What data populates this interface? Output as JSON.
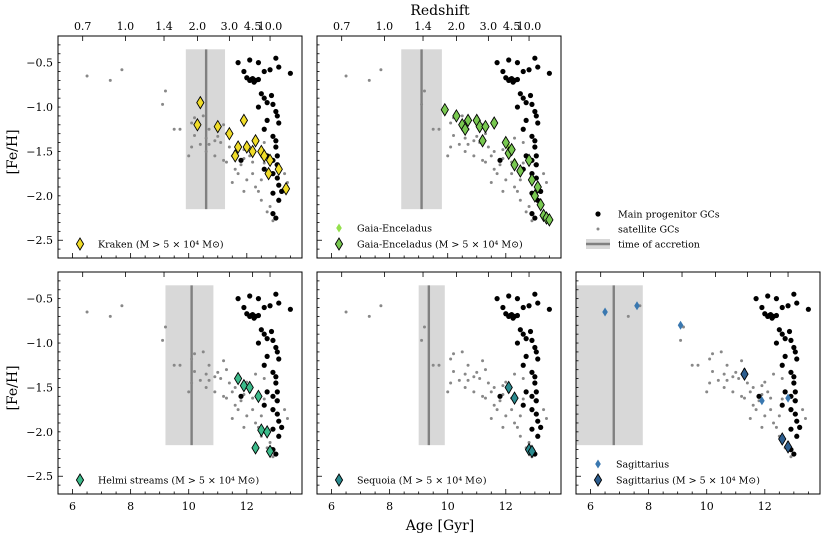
{
  "labels": {
    "xlabel": "Age [Gyr]",
    "ylabel": "[Fe/H]",
    "top_xlabel": "Redshift"
  },
  "colors": {
    "main": "#000000",
    "satellite": "#888888",
    "accretion_line": "#808080",
    "accretion_band": "#d8d8d8",
    "kraken": "#f0dc28",
    "gaia_light": "#94e04c",
    "gaia": "#78c850",
    "helmi": "#3cba8a",
    "sequoia": "#2a8a8e",
    "sagittarius_light": "#3a78b0",
    "sagittarius": "#2c5d8e"
  },
  "chart_data": {
    "type": "scatter",
    "xlim": [
      5.5,
      13.9
    ],
    "ylim": [
      -2.7,
      -0.2
    ],
    "x_ticks": [
      6,
      8,
      10,
      12
    ],
    "y_ticks": [
      -0.5,
      -1.0,
      -1.5,
      -2.0,
      -2.5
    ],
    "y_tick_labels": [
      "−0.5",
      "−1.0",
      "−1.5",
      "−2.0",
      "−2.5"
    ],
    "redshift_ticks": [
      {
        "label": "0.7",
        "age": 6.35
      },
      {
        "label": "1.0",
        "age": 7.82
      },
      {
        "label": "1.4",
        "age": 9.15
      },
      {
        "label": "2.0",
        "age": 10.3
      },
      {
        "label": "3.0",
        "age": 11.4
      },
      {
        "label": "4.5",
        "age": 12.2
      },
      {
        "label": "10.0",
        "age": 12.8
      }
    ],
    "main_gcs": [
      [
        11.7,
        -0.5
      ],
      [
        11.9,
        -0.6
      ],
      [
        12.1,
        -0.47
      ],
      [
        12.4,
        -0.5
      ],
      [
        12.6,
        -0.6
      ],
      [
        12.8,
        -0.58
      ],
      [
        13.0,
        -0.45
      ],
      [
        13.1,
        -0.55
      ],
      [
        13.5,
        -0.62
      ],
      [
        12.0,
        -0.67
      ],
      [
        12.1,
        -0.7
      ],
      [
        12.15,
        -0.69
      ],
      [
        12.2,
        -0.68
      ],
      [
        12.3,
        -0.7
      ],
      [
        12.25,
        -0.72
      ],
      [
        12.4,
        -0.69
      ],
      [
        12.5,
        -0.85
      ],
      [
        12.6,
        -0.9
      ],
      [
        12.7,
        -0.95
      ],
      [
        12.85,
        -0.87
      ],
      [
        12.9,
        -0.97
      ],
      [
        13.0,
        -1.05
      ],
      [
        13.05,
        -1.1
      ],
      [
        12.4,
        -1.0
      ],
      [
        12.7,
        -1.15
      ],
      [
        13.1,
        -1.18
      ],
      [
        12.6,
        -1.25
      ],
      [
        12.9,
        -1.33
      ],
      [
        13.0,
        -1.38
      ],
      [
        13.0,
        -1.45
      ],
      [
        11.8,
        -1.6
      ],
      [
        12.7,
        -1.55
      ],
      [
        12.9,
        -1.6
      ],
      [
        13.05,
        -1.55
      ],
      [
        13.05,
        -1.65
      ],
      [
        12.6,
        -1.7
      ],
      [
        12.9,
        -1.75
      ],
      [
        13.05,
        -1.8
      ],
      [
        13.1,
        -1.88
      ],
      [
        13.2,
        -1.95
      ],
      [
        12.9,
        -1.97
      ],
      [
        13.1,
        -2.05
      ],
      [
        12.9,
        -2.2
      ],
      [
        13.0,
        -2.25
      ]
    ],
    "satellite_gcs": [
      [
        6.5,
        -0.65
      ],
      [
        7.3,
        -0.7
      ],
      [
        7.7,
        -0.58
      ],
      [
        9.2,
        -0.82
      ],
      [
        9.1,
        -0.97
      ],
      [
        9.5,
        -1.25
      ],
      [
        10.2,
        -1.12
      ],
      [
        10.1,
        -1.18
      ],
      [
        10.5,
        -1.1
      ],
      [
        10.2,
        -1.32
      ],
      [
        10.6,
        -1.35
      ],
      [
        10.7,
        -1.25
      ],
      [
        10.9,
        -1.38
      ],
      [
        10.6,
        -1.5
      ],
      [
        10.7,
        -1.42
      ],
      [
        11.2,
        -1.2
      ],
      [
        11.4,
        -1.45
      ],
      [
        11.5,
        -1.55
      ],
      [
        11.3,
        -1.62
      ],
      [
        11.6,
        -1.7
      ],
      [
        11.8,
        -1.65
      ],
      [
        11.7,
        -1.75
      ],
      [
        11.9,
        -1.58
      ],
      [
        12.0,
        -1.82
      ],
      [
        12.2,
        -1.75
      ],
      [
        12.3,
        -1.9
      ],
      [
        12.4,
        -1.95
      ],
      [
        12.5,
        -2.05
      ],
      [
        12.7,
        -2.18
      ],
      [
        12.8,
        -2.12
      ],
      [
        12.9,
        -2.28
      ],
      [
        12.6,
        -1.4
      ],
      [
        12.3,
        -1.35
      ],
      [
        11.9,
        -1.48
      ],
      [
        11.6,
        -1.5
      ],
      [
        10.4,
        -1.42
      ],
      [
        11.1,
        -1.4
      ],
      [
        11.3,
        -1.3
      ],
      [
        10.9,
        -1.55
      ],
      [
        12.1,
        -1.55
      ],
      [
        12.2,
        -1.62
      ],
      [
        12.0,
        -1.44
      ],
      [
        13.0,
        -1.45
      ],
      [
        13.3,
        -1.75
      ],
      [
        13.4,
        -1.85
      ],
      [
        13.0,
        -1.65
      ],
      [
        11.5,
        -1.85
      ],
      [
        11.9,
        -1.95
      ],
      [
        12.5,
        -1.82
      ],
      [
        10.1,
        -1.45
      ],
      [
        10.0,
        -1.55
      ],
      [
        9.7,
        -1.25
      ],
      [
        11.0,
        -1.33
      ],
      [
        12.6,
        -1.63
      ],
      [
        11.2,
        -1.6
      ]
    ],
    "panels": [
      {
        "key": "kraken",
        "band": [
          9.9,
          11.25
        ],
        "line": 10.6,
        "legend": [
          {
            "text": "Kraken (M > 5 × 10⁴ M⊙)",
            "color": "#f0dc28",
            "kind": "big"
          }
        ],
        "points": [
          [
            10.4,
            -0.95
          ],
          [
            10.3,
            -1.2
          ],
          [
            11.0,
            -1.22
          ],
          [
            11.4,
            -1.3
          ],
          [
            11.6,
            -1.55
          ],
          [
            11.7,
            -1.45
          ],
          [
            11.9,
            -1.15
          ],
          [
            12.0,
            -1.45
          ],
          [
            12.2,
            -1.5
          ],
          [
            12.3,
            -1.38
          ],
          [
            12.5,
            -1.5
          ],
          [
            12.6,
            -1.55
          ],
          [
            12.75,
            -1.75
          ],
          [
            12.8,
            -1.6
          ],
          [
            13.1,
            -1.7
          ],
          [
            13.35,
            -1.92
          ]
        ]
      },
      {
        "key": "gaia",
        "band": [
          8.4,
          9.8
        ],
        "line": 9.1,
        "legend": [
          {
            "text": "Gaia-Enceladus",
            "color": "#94e04c",
            "kind": "small"
          },
          {
            "text": "Gaia-Enceladus (M > 5 × 10⁴ M⊙)",
            "color": "#78c850",
            "kind": "big"
          }
        ],
        "points": [
          [
            9.9,
            -1.03
          ],
          [
            10.3,
            -1.1
          ],
          [
            10.5,
            -1.2
          ],
          [
            10.6,
            -1.25
          ],
          [
            10.7,
            -1.15
          ],
          [
            11.0,
            -1.15
          ],
          [
            11.1,
            -1.22
          ],
          [
            11.2,
            -1.38
          ],
          [
            11.3,
            -1.22
          ],
          [
            11.6,
            -1.18
          ],
          [
            12.0,
            -1.4
          ],
          [
            12.1,
            -1.52
          ],
          [
            12.2,
            -1.48
          ],
          [
            12.3,
            -1.65
          ],
          [
            12.5,
            -1.72
          ],
          [
            12.8,
            -1.6
          ],
          [
            12.9,
            -1.82
          ],
          [
            13.0,
            -2.0
          ],
          [
            13.1,
            -1.9
          ],
          [
            13.2,
            -2.1
          ],
          [
            13.3,
            -2.22
          ],
          [
            13.4,
            -2.25
          ],
          [
            13.5,
            -2.27
          ]
        ],
        "small_points": [
          [
            12.1,
            -1.45
          ],
          [
            12.3,
            -1.62
          ]
        ]
      },
      {
        "key": "sagittarius",
        "band": [
          5.5,
          7.8
        ],
        "line": 6.8,
        "legend": [
          {
            "text": "Sagittarius",
            "color": "#3a78b0",
            "kind": "small"
          },
          {
            "text": "Sagittarius (M > 5 × 10⁴ M⊙)",
            "color": "#2c5d8e",
            "kind": "big"
          }
        ],
        "small_points": [
          [
            6.5,
            -0.65
          ],
          [
            7.6,
            -0.58
          ],
          [
            9.1,
            -0.8
          ],
          [
            11.9,
            -1.65
          ],
          [
            12.8,
            -1.62
          ]
        ],
        "points": [
          [
            11.3,
            -1.35
          ],
          [
            12.6,
            -2.08
          ],
          [
            12.8,
            -2.17
          ]
        ]
      },
      {
        "key": "helmi",
        "band": [
          9.2,
          10.85
        ],
        "line": 10.1,
        "legend": [
          {
            "text": "Helmi streams (M > 5 × 10⁴ M⊙)",
            "color": "#3cba8a",
            "kind": "big"
          }
        ],
        "points": [
          [
            11.7,
            -1.4
          ],
          [
            11.9,
            -1.48
          ],
          [
            12.1,
            -1.5
          ],
          [
            12.4,
            -1.6
          ],
          [
            12.5,
            -1.98
          ],
          [
            12.7,
            -2.0
          ],
          [
            12.3,
            -2.18
          ],
          [
            12.8,
            -2.22
          ]
        ]
      },
      {
        "key": "sequoia",
        "band": [
          9.0,
          9.9
        ],
        "line": 9.35,
        "legend": [
          {
            "text": "Sequoia (M > 5 × 10⁴ M⊙)",
            "color": "#2a8a8e",
            "kind": "big"
          }
        ],
        "points": [
          [
            12.1,
            -1.5
          ],
          [
            12.3,
            -1.62
          ],
          [
            12.8,
            -2.2
          ],
          [
            12.9,
            -2.22
          ]
        ]
      }
    ],
    "global_legend": [
      {
        "text": "Main progenitor GCs",
        "color": "#000000",
        "kind": "dot-big"
      },
      {
        "text": "satellite GCs",
        "color": "#888888",
        "kind": "dot-small"
      },
      {
        "text": "time of accretion",
        "color": "#808080",
        "kind": "band"
      }
    ]
  }
}
